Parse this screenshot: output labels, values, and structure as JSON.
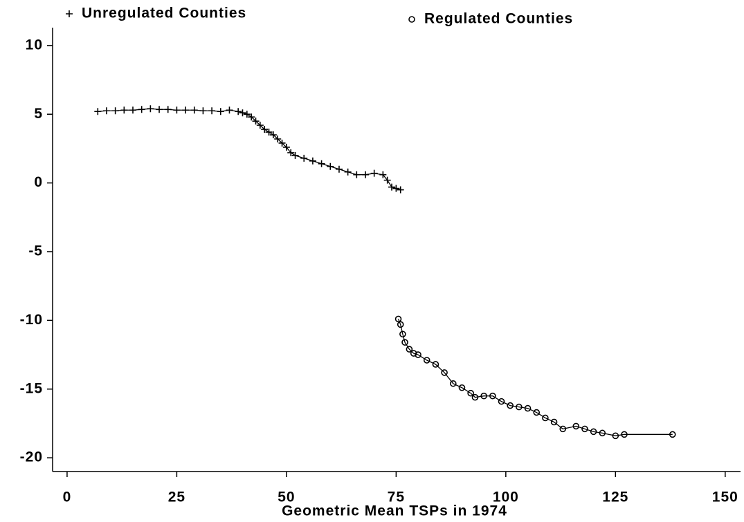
{
  "chart_data": {
    "type": "line",
    "x_label": "Geometric Mean TSPs in 1974",
    "xlim": [
      -3.3,
      153.5
    ],
    "ylim": [
      -21,
      11.3
    ],
    "xticks": [
      0,
      25,
      50,
      75,
      100,
      125,
      150
    ],
    "yticks": [
      -20,
      -15,
      -10,
      -5,
      0,
      5,
      10
    ],
    "grid": false,
    "series": [
      {
        "name": "Unregulated Counties",
        "color": "#000000",
        "marker": "plus",
        "x": [
          7,
          9,
          11,
          13,
          15,
          17,
          19,
          21,
          23,
          25,
          27,
          29,
          31,
          33,
          35,
          37,
          39,
          40,
          41,
          42,
          43,
          44,
          45,
          46,
          47,
          48,
          49,
          50,
          51,
          52,
          54,
          56,
          58,
          60,
          62,
          64,
          66,
          68,
          70,
          72,
          73,
          74,
          75,
          76
        ],
        "values": [
          5.2,
          5.25,
          5.25,
          5.3,
          5.3,
          5.35,
          5.4,
          5.35,
          5.35,
          5.3,
          5.3,
          5.3,
          5.25,
          5.25,
          5.2,
          5.3,
          5.2,
          5.1,
          5.0,
          4.8,
          4.5,
          4.2,
          3.9,
          3.7,
          3.5,
          3.2,
          2.9,
          2.6,
          2.2,
          2.0,
          1.8,
          1.6,
          1.4,
          1.2,
          1.0,
          0.8,
          0.6,
          0.6,
          0.7,
          0.6,
          0.2,
          -0.3,
          -0.4,
          -0.5
        ]
      },
      {
        "name": "Regulated Counties",
        "color": "#000000",
        "marker": "circle",
        "x": [
          75.5,
          76,
          76.5,
          77,
          78,
          79,
          80,
          82,
          84,
          86,
          88,
          90,
          92,
          93,
          95,
          97,
          99,
          101,
          103,
          105,
          107,
          109,
          111,
          113,
          116,
          118,
          120,
          122,
          125,
          127,
          138
        ],
        "values": [
          -9.9,
          -10.3,
          -11,
          -11.6,
          -12.1,
          -12.4,
          -12.5,
          -12.9,
          -13.2,
          -13.8,
          -14.6,
          -14.9,
          -15.3,
          -15.6,
          -15.5,
          -15.5,
          -15.9,
          -16.2,
          -16.3,
          -16.4,
          -16.7,
          -17.1,
          -17.4,
          -17.9,
          -17.7,
          -17.9,
          -18.1,
          -18.2,
          -18.4,
          -18.3,
          -18.3
        ]
      }
    ]
  }
}
